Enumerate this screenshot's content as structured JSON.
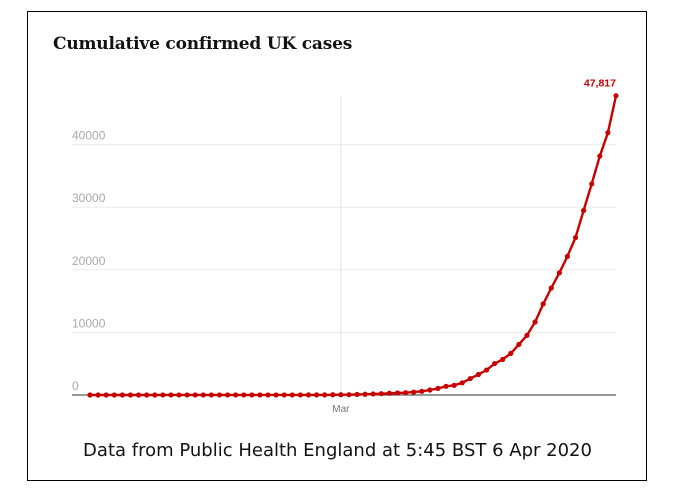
{
  "chart_data": {
    "type": "line",
    "title": "Cumulative confirmed UK cases",
    "xlabel": "",
    "ylabel": "",
    "ylim": [
      0,
      50000
    ],
    "yticks": [
      0,
      10000,
      20000,
      30000,
      40000
    ],
    "ytick_labels": [
      "0",
      "10000",
      "20000",
      "30000",
      "40000"
    ],
    "xticks": [
      {
        "day": 31,
        "label": "Mar"
      }
    ],
    "x_start": "31 Jan 2020",
    "x_end": "5 Apr 2020",
    "grid": true,
    "end_label": "47,817",
    "series": [
      {
        "name": "Cumulative confirmed UK cases",
        "color": "#c70000",
        "days": [
          0,
          1,
          2,
          3,
          4,
          5,
          6,
          7,
          8,
          9,
          10,
          11,
          12,
          13,
          14,
          15,
          16,
          17,
          18,
          19,
          20,
          21,
          22,
          23,
          24,
          25,
          26,
          27,
          28,
          29,
          30,
          31,
          32,
          33,
          34,
          35,
          36,
          37,
          38,
          39,
          40,
          41,
          42,
          43,
          44,
          45,
          46,
          47,
          48,
          49,
          50,
          51,
          52,
          53,
          54,
          55,
          56,
          57,
          58,
          59,
          60,
          61,
          62,
          63,
          64,
          65
        ],
        "values": [
          2,
          2,
          2,
          2,
          2,
          2,
          2,
          3,
          3,
          8,
          8,
          9,
          9,
          9,
          9,
          9,
          9,
          9,
          9,
          9,
          9,
          9,
          13,
          13,
          13,
          13,
          13,
          15,
          20,
          23,
          36,
          40,
          51,
          87,
          116,
          164,
          209,
          278,
          321,
          373,
          456,
          590,
          797,
          1061,
          1391,
          1543,
          1950,
          2626,
          3269,
          3983,
          5018,
          5683,
          6650,
          8077,
          9529,
          11658,
          14543,
          17089,
          19522,
          22141,
          25150,
          29474,
          33718,
          38168,
          41903,
          47817
        ]
      }
    ]
  },
  "caption": "Data from Public Health England at 5:45 BST 6 Apr 2020"
}
